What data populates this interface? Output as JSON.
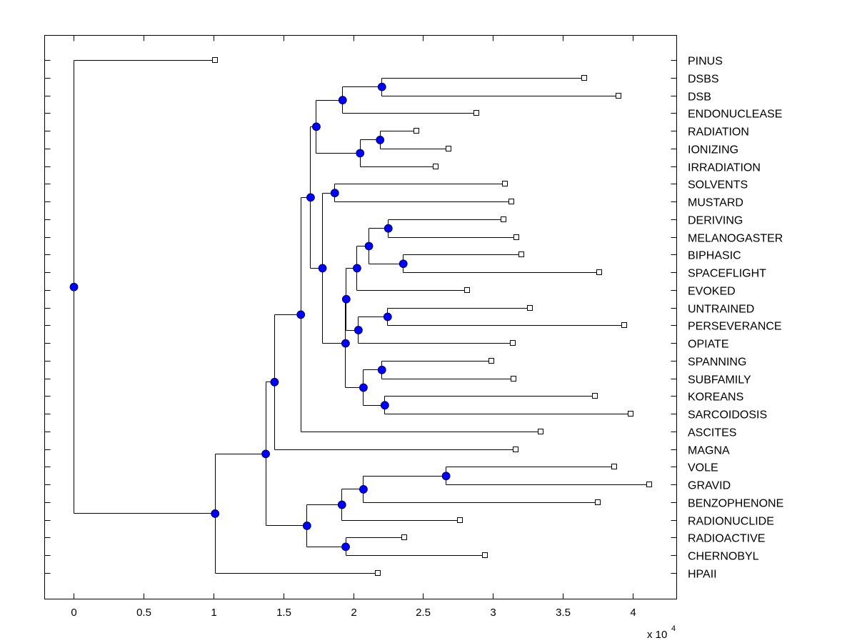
{
  "chart_data": {
    "type": "dendrogram",
    "title": "",
    "xlabel": "",
    "ylabel": "",
    "x_multiplier_label": "x 10",
    "x_multiplier_exponent": "4",
    "xlim": [
      -0.207,
      4.314
    ],
    "x_ticks": [
      0,
      0.5,
      1,
      1.5,
      2,
      2.5,
      3,
      3.5,
      4
    ],
    "x_tick_labels": [
      "0",
      "0.5",
      "1",
      "1.5",
      "2",
      "2.5",
      "3",
      "3.5",
      "4"
    ],
    "grid": false,
    "node_color": "#0000FF",
    "leaf_marker_color": "#FFFFFF",
    "leaves": [
      {
        "label": "PINUS",
        "x": 1.01
      },
      {
        "label": "DSBS",
        "x": 3.653
      },
      {
        "label": "DSB",
        "x": 3.897
      },
      {
        "label": "ENDONUCLEASE",
        "x": 2.882
      },
      {
        "label": "RADIATION",
        "x": 2.453
      },
      {
        "label": "IONIZING",
        "x": 2.683
      },
      {
        "label": "IRRADIATION",
        "x": 2.591
      },
      {
        "label": "SOLVENTS",
        "x": 3.086
      },
      {
        "label": "MUSTARD",
        "x": 3.132
      },
      {
        "label": "DERIVING",
        "x": 3.076
      },
      {
        "label": "MELANOGASTER",
        "x": 3.167
      },
      {
        "label": "BIPHASIC",
        "x": 3.203
      },
      {
        "label": "SPACEFLIGHT",
        "x": 3.759
      },
      {
        "label": "EVOKED",
        "x": 2.815
      },
      {
        "label": "UNTRAINED",
        "x": 3.264
      },
      {
        "label": "PERSEVERANCE",
        "x": 3.938
      },
      {
        "label": "OPIATE",
        "x": 3.142
      },
      {
        "label": "SPANNING",
        "x": 2.989
      },
      {
        "label": "SUBFAMILY",
        "x": 3.147
      },
      {
        "label": "KOREANS",
        "x": 3.729
      },
      {
        "label": "SARCOIDOSIS",
        "x": 3.984
      },
      {
        "label": "ASCITES",
        "x": 3.341
      },
      {
        "label": "MAGNA",
        "x": 3.162
      },
      {
        "label": "VOLE",
        "x": 3.865
      },
      {
        "label": "GRAVID",
        "x": 4.116
      },
      {
        "label": "BENZOPHENONE",
        "x": 3.748
      },
      {
        "label": "RADIONUCLIDE",
        "x": 2.762
      },
      {
        "label": "RADIOACTIVE",
        "x": 2.365
      },
      {
        "label": "CHERNOBYL",
        "x": 2.943
      },
      {
        "label": "HPAII",
        "x": 2.174
      }
    ],
    "tree": {
      "x": 0,
      "children": [
        {
          "leaf": 0
        },
        {
          "x": 1.01,
          "children": [
            {
              "x": 1.372,
              "children": [
                {
                  "x": 1.435,
                  "children": [
                    {
                      "x": 1.623,
                      "children": [
                        {
                          "x": 1.693,
                          "children": [
                            {
                              "x": 1.734,
                              "children": [
                                {
                                  "x": 1.922,
                                  "children": [
                                    {
                                      "x": 2.203,
                                      "children": [
                                        {
                                          "leaf": 1
                                        },
                                        {
                                          "leaf": 2
                                        }
                                      ]
                                    },
                                    {
                                      "leaf": 3
                                    }
                                  ]
                                },
                                {
                                  "x": 2.047,
                                  "children": [
                                    {
                                      "x": 2.19,
                                      "children": [
                                        {
                                          "leaf": 4
                                        },
                                        {
                                          "leaf": 5
                                        }
                                      ]
                                    },
                                    {
                                      "leaf": 6
                                    }
                                  ]
                                }
                              ]
                            },
                            {
                              "x": 1.778,
                              "children": [
                                {
                                  "x": 1.866,
                                  "children": [
                                    {
                                      "leaf": 7
                                    },
                                    {
                                      "leaf": 8
                                    }
                                  ]
                                },
                                {
                                  "x": 1.943,
                                  "children": [
                                    {
                                      "x": 1.948,
                                      "children": [
                                        {
                                          "x": 2.025,
                                          "children": [
                                            {
                                              "x": 2.11,
                                              "children": [
                                                {
                                                  "x": 2.249,
                                                  "children": [
                                                    {
                                                      "leaf": 9
                                                    },
                                                    {
                                                      "leaf": 10
                                                    }
                                                  ]
                                                },
                                                {
                                                  "x": 2.356,
                                                  "children": [
                                                    {
                                                      "leaf": 11
                                                    },
                                                    {
                                                      "leaf": 12
                                                    }
                                                  ]
                                                }
                                              ]
                                            },
                                            {
                                              "leaf": 13
                                            }
                                          ]
                                        },
                                        {
                                          "x": 2.035,
                                          "children": [
                                            {
                                              "x": 2.244,
                                              "children": [
                                                {
                                                  "leaf": 14
                                                },
                                                {
                                                  "leaf": 15
                                                }
                                              ]
                                            },
                                            {
                                              "leaf": 16
                                            }
                                          ]
                                        }
                                      ]
                                    },
                                    {
                                      "x": 2.071,
                                      "children": [
                                        {
                                          "x": 2.203,
                                          "children": [
                                            {
                                              "leaf": 17
                                            },
                                            {
                                              "leaf": 18
                                            }
                                          ]
                                        },
                                        {
                                          "x": 2.224,
                                          "children": [
                                            {
                                              "leaf": 19
                                            },
                                            {
                                              "leaf": 20
                                            }
                                          ]
                                        }
                                      ]
                                    }
                                  ]
                                }
                              ]
                            }
                          ]
                        },
                        {
                          "leaf": 21
                        }
                      ]
                    },
                    {
                      "leaf": 22
                    }
                  ]
                },
                {
                  "x": 1.667,
                  "children": [
                    {
                      "x": 1.917,
                      "children": [
                        {
                          "x": 2.071,
                          "children": [
                            {
                              "x": 2.662,
                              "children": [
                                {
                                  "leaf": 23
                                },
                                {
                                  "leaf": 24
                                }
                              ]
                            },
                            {
                              "leaf": 25
                            }
                          ]
                        },
                        {
                          "leaf": 26
                        }
                      ]
                    },
                    {
                      "x": 1.944,
                      "children": [
                        {
                          "leaf": 27
                        },
                        {
                          "leaf": 28
                        }
                      ]
                    }
                  ]
                }
              ]
            },
            {
              "leaf": 29
            }
          ]
        }
      ]
    }
  }
}
